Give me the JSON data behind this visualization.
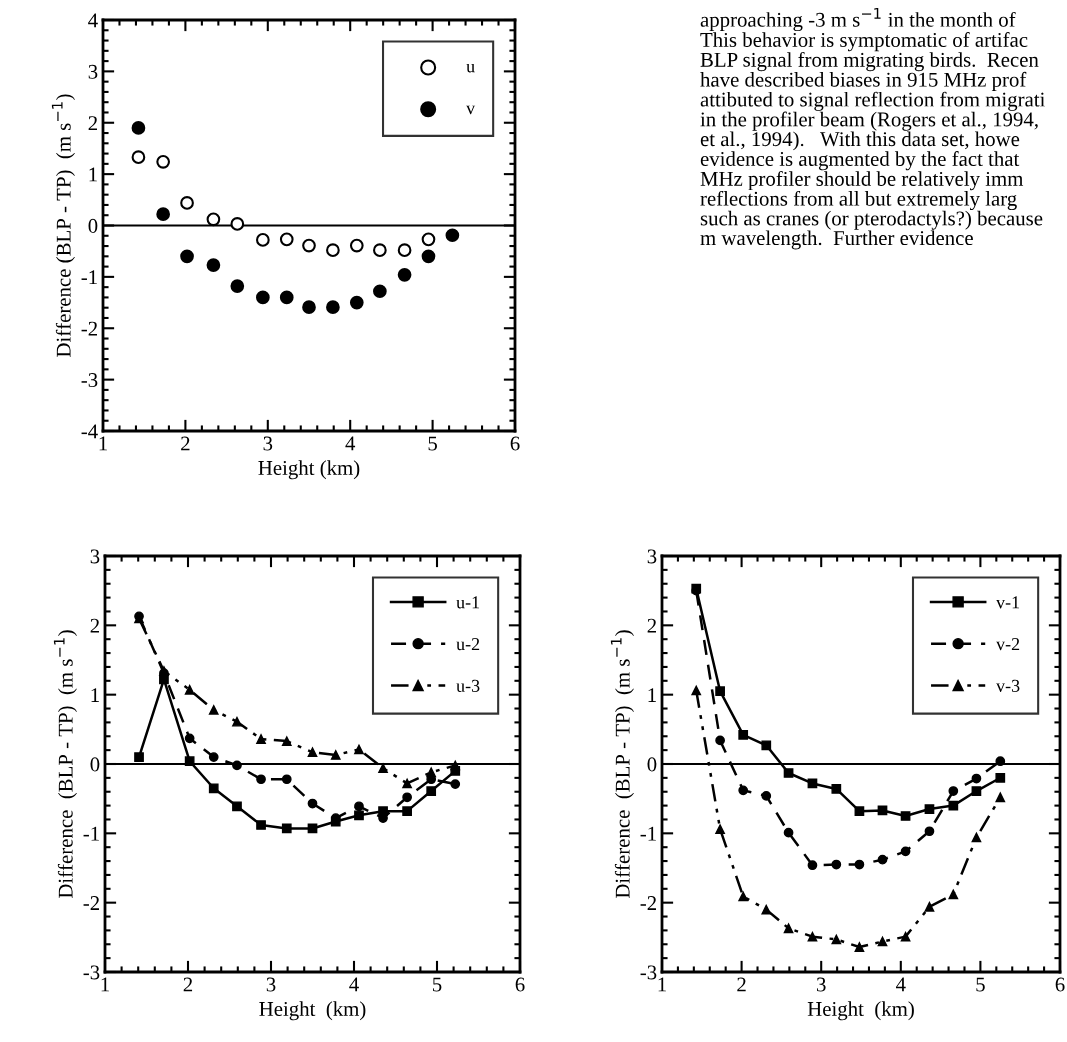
{
  "chart_data": [
    {
      "type": "scatter",
      "xlabel": "Height (km)",
      "ylabel": "Difference (BLP - TP)  (m s$^{−1}$)",
      "xlim": [
        1,
        6
      ],
      "xticks": [
        1,
        2,
        3,
        4,
        5,
        6
      ],
      "ylim": [
        -4,
        4
      ],
      "yticks": [
        -4,
        -3,
        -2,
        -1,
        0,
        1,
        2,
        3,
        4
      ],
      "grid": false,
      "legend": "top right",
      "marker": "circle",
      "ref_lines": [
        {
          "axis": "y",
          "value": 0,
          "color": "#000000",
          "line_style": "solid"
        }
      ],
      "annotations": [
        "approaching -3 m s$^{−1}$ in the month of\nThis behavior is symptomatic of artifac\nBLP signal from migrating birds.  Recen\nhave described biases in 915 MHz prof\nattibuted to signal reflection from migrati\nin the profiler beam (Rogers et al., 1994,\net al., 1994).   With this data set, howe\nevidence is augmented by the fact that\nMHz profiler should be relatively imm\nreflections from all but extremely larg\nsuch as cranes (or pterodactyls?) because\nm wavelength.  Further evidence"
      ],
      "series": [
        {
          "name": "u",
          "color": "#ffffff",
          "x": [
            1.43,
            1.73,
            2.02,
            2.34,
            2.63,
            2.94,
            3.23,
            3.5,
            3.79,
            4.08,
            4.36,
            4.66,
            4.95
          ],
          "values": [
            1.33,
            1.24,
            0.44,
            0.12,
            0.03,
            -0.28,
            -0.27,
            -0.39,
            -0.48,
            -0.39,
            -0.48,
            -0.48,
            -0.27
          ]
        },
        {
          "name": "v",
          "color": "#000000",
          "x": [
            1.43,
            1.73,
            2.02,
            2.34,
            2.63,
            2.94,
            3.23,
            3.5,
            3.79,
            4.08,
            4.36,
            4.66,
            4.95,
            5.24
          ],
          "values": [
            1.9,
            0.22,
            -0.6,
            -0.77,
            -1.18,
            -1.4,
            -1.4,
            -1.59,
            -1.59,
            -1.5,
            -1.28,
            -0.96,
            -0.6,
            -0.19
          ]
        }
      ]
    },
    {
      "type": "line",
      "xlabel": "Height  (km)",
      "ylabel": "Difference  (BLP - TP)  (m s$^{−1}$)",
      "xlim": [
        1,
        6
      ],
      "xticks": [
        1,
        2,
        3,
        4,
        5,
        6
      ],
      "ylim": [
        -3,
        3
      ],
      "yticks": [
        -3,
        -2,
        -1,
        0,
        1,
        2,
        3
      ],
      "grid": false,
      "legend": "top right",
      "ref_lines": [
        {
          "axis": "y",
          "value": 0,
          "color": "#000000",
          "line_style": "solid"
        }
      ],
      "x": [
        1.41,
        1.71,
        2.02,
        2.31,
        2.59,
        2.88,
        3.19,
        3.5,
        3.78,
        4.06,
        4.35,
        4.64,
        4.93,
        5.22
      ],
      "series": [
        {
          "name": "u-1",
          "color": "#000000",
          "marker": "square",
          "line_style": "solid",
          "values": [
            0.1,
            1.22,
            0.04,
            -0.35,
            -0.61,
            -0.88,
            -0.93,
            -0.93,
            -0.83,
            -0.74,
            -0.68,
            -0.68,
            -0.39,
            -0.1
          ]
        },
        {
          "name": "u-2",
          "color": "#000000",
          "marker": "circle",
          "line_style": "dashed",
          "values": [
            2.13,
            1.31,
            0.37,
            0.1,
            -0.02,
            -0.22,
            -0.22,
            -0.57,
            -0.78,
            -0.61,
            -0.78,
            -0.48,
            -0.22,
            -0.29
          ]
        },
        {
          "name": "u-3",
          "color": "#000000",
          "marker": "triangle",
          "line_style": "dashdot",
          "values": [
            2.1,
            1.34,
            1.07,
            0.78,
            0.61,
            0.36,
            0.33,
            0.17,
            0.13,
            0.21,
            -0.06,
            -0.28,
            -0.12,
            -0.02
          ]
        }
      ]
    },
    {
      "type": "line",
      "xlabel": "Height  (km)",
      "ylabel": "Difference  (BLP - TP)  (m s$^{−1}$)",
      "xlim": [
        1,
        6
      ],
      "xticks": [
        1,
        2,
        3,
        4,
        5,
        6
      ],
      "ylim": [
        -3,
        3
      ],
      "yticks": [
        -3,
        -2,
        -1,
        0,
        1,
        2,
        3
      ],
      "grid": false,
      "legend": "top right",
      "ref_lines": [
        {
          "axis": "y",
          "value": 0,
          "color": "#000000",
          "line_style": "solid"
        }
      ],
      "x": [
        1.43,
        1.73,
        2.02,
        2.31,
        2.59,
        2.89,
        3.19,
        3.48,
        3.77,
        4.06,
        4.36,
        4.66,
        4.95,
        5.25
      ],
      "series": [
        {
          "name": "v-1",
          "color": "#000000",
          "marker": "square",
          "line_style": "solid",
          "values": [
            2.53,
            1.05,
            0.42,
            0.27,
            -0.13,
            -0.28,
            -0.36,
            -0.68,
            -0.67,
            -0.75,
            -0.65,
            -0.6,
            -0.39,
            -0.2
          ]
        },
        {
          "name": "v-2",
          "color": "#000000",
          "marker": "circle",
          "line_style": "dashed",
          "values": [
            2.5,
            0.34,
            -0.38,
            -0.46,
            -0.99,
            -1.46,
            -1.45,
            -1.45,
            -1.38,
            -1.26,
            -0.97,
            -0.39,
            -0.21,
            0.04
          ]
        },
        {
          "name": "v-3",
          "color": "#000000",
          "marker": "triangle",
          "line_style": "dashdot",
          "values": [
            1.06,
            -0.94,
            -1.91,
            -2.1,
            -2.37,
            -2.49,
            -2.53,
            -2.64,
            -2.56,
            -2.49,
            -2.06,
            -1.88,
            -1.06,
            -0.48
          ]
        }
      ]
    }
  ]
}
